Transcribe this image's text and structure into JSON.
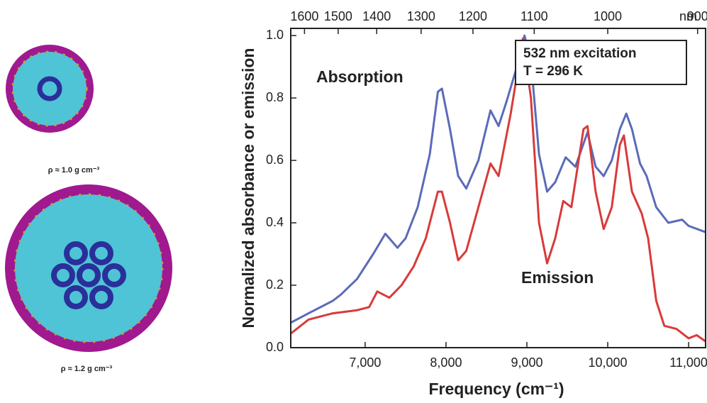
{
  "images": [
    {
      "caption": "ρ ≈ 1.0 g cm⁻³"
    },
    {
      "caption": "ρ ≈ 1.2 g cm⁻³"
    }
  ],
  "chart_data": {
    "type": "line",
    "x_label": "Frequency (cm⁻¹)",
    "y_label": "Normalized absorbance or emission",
    "xlim": [
      6080,
      11210
    ],
    "ylim": [
      0,
      1.023
    ],
    "xticks": [
      {
        "value": 7000,
        "label": "7,000"
      },
      {
        "value": 8000,
        "label": "8,000"
      },
      {
        "value": 9000,
        "label": "9,000"
      },
      {
        "value": 10000,
        "label": "10,000"
      },
      {
        "value": 11000,
        "label": "11,000"
      }
    ],
    "yticks": [
      {
        "value": 0,
        "label": "0.0"
      },
      0.2,
      0.4,
      0.6,
      0.8,
      {
        "value": 1,
        "label": "1.0"
      }
    ],
    "x2ticks": [
      1600,
      1500,
      1400,
      1300,
      1200,
      1100,
      1000,
      900
    ],
    "x2_unit": "nm",
    "annotations": [
      {
        "text": "Absorption",
        "color": "#5a6bb8"
      },
      {
        "text": "Emission",
        "color": "#d93a3a"
      }
    ],
    "legend_box": [
      "532 nm excitation",
      "T = 296 K"
    ],
    "series": [
      {
        "name": "Absorption",
        "color": "#5a6bb8",
        "x": [
          6080,
          6300,
          6600,
          6700,
          6900,
          7100,
          7250,
          7300,
          7400,
          7500,
          7650,
          7800,
          7900,
          7950,
          8050,
          8150,
          8250,
          8400,
          8550,
          8650,
          8750,
          8900,
          8970,
          9050,
          9150,
          9250,
          9350,
          9480,
          9600,
          9750,
          9850,
          9950,
          10050,
          10150,
          10230,
          10300,
          10400,
          10480,
          10600,
          10750,
          10920,
          11000,
          11210
        ],
        "values": [
          0.08,
          0.11,
          0.15,
          0.17,
          0.22,
          0.3,
          0.365,
          0.35,
          0.32,
          0.35,
          0.45,
          0.62,
          0.82,
          0.83,
          0.7,
          0.55,
          0.51,
          0.6,
          0.76,
          0.71,
          0.79,
          0.92,
          1.0,
          0.92,
          0.62,
          0.5,
          0.53,
          0.61,
          0.58,
          0.69,
          0.58,
          0.55,
          0.6,
          0.7,
          0.75,
          0.7,
          0.59,
          0.55,
          0.45,
          0.4,
          0.41,
          0.39,
          0.37
        ]
      },
      {
        "name": "Emission",
        "color": "#d93a3a",
        "x": [
          6080,
          6300,
          6600,
          6900,
          7050,
          7150,
          7300,
          7450,
          7600,
          7750,
          7900,
          7950,
          8050,
          8150,
          8250,
          8400,
          8550,
          8650,
          8800,
          8950,
          9050,
          9150,
          9250,
          9350,
          9450,
          9550,
          9700,
          9750,
          9850,
          9950,
          10050,
          10150,
          10200,
          10300,
          10420,
          10500,
          10600,
          10700,
          10850,
          11000,
          11100,
          11210
        ],
        "values": [
          0.045,
          0.09,
          0.11,
          0.12,
          0.13,
          0.18,
          0.16,
          0.2,
          0.26,
          0.35,
          0.5,
          0.5,
          0.4,
          0.28,
          0.31,
          0.45,
          0.59,
          0.55,
          0.75,
          0.99,
          0.8,
          0.4,
          0.27,
          0.35,
          0.47,
          0.45,
          0.7,
          0.71,
          0.5,
          0.38,
          0.45,
          0.65,
          0.68,
          0.5,
          0.43,
          0.35,
          0.15,
          0.07,
          0.06,
          0.03,
          0.04,
          0.02
        ]
      }
    ]
  }
}
